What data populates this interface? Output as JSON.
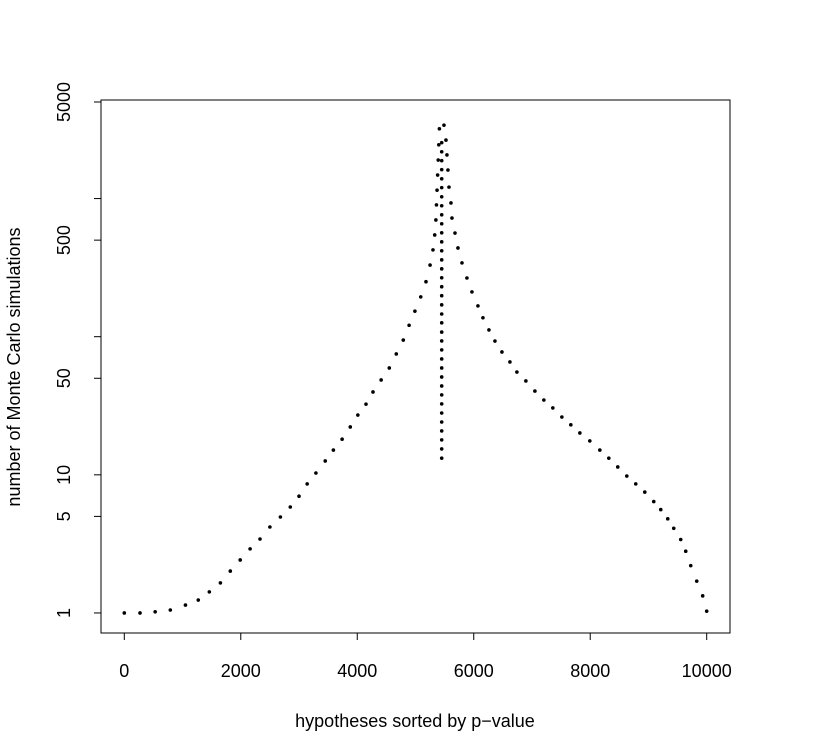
{
  "chart_data": {
    "type": "scatter",
    "xlabel": "hypotheses sorted by p−value",
    "ylabel": "number of Monte Carlo simulations",
    "ylog": true,
    "color": "#000000",
    "xlim": [
      -400,
      10400
    ],
    "ylim": [
      0.716,
      5170
    ],
    "xticks": [
      0,
      2000,
      4000,
      6000,
      8000,
      10000
    ],
    "yticks": [
      1,
      5,
      10,
      50,
      500,
      5000
    ],
    "yticks_minor": [
      100,
      1000
    ],
    "x": [
      0,
      270,
      530,
      790,
      1050,
      1270,
      1460,
      1650,
      1820,
      1990,
      2160,
      2330,
      2500,
      2680,
      2850,
      3000,
      3140,
      3290,
      3450,
      3590,
      3740,
      3880,
      4010,
      4150,
      4270,
      4410,
      4550,
      4670,
      4790,
      4890,
      4990,
      5090,
      5180,
      5250,
      5300,
      5330,
      5350,
      5360,
      5370,
      5380,
      5390,
      5400,
      5410,
      5450,
      5450,
      5450,
      5450,
      5450,
      5450,
      5450,
      5450,
      5450,
      5450,
      5450,
      5450,
      5450,
      5450,
      5450,
      5450,
      5450,
      5450,
      5450,
      5450,
      5450,
      5450,
      5450,
      5450,
      5450,
      5450,
      5450,
      5450,
      5450,
      5450,
      5450,
      5450,
      5450,
      5450,
      5450,
      5450,
      5489,
      5523,
      5540,
      5557,
      5575,
      5609,
      5626,
      5678,
      5729,
      5798,
      5883,
      5969,
      6072,
      6158,
      6261,
      6364,
      6484,
      6621,
      6741,
      6895,
      7050,
      7204,
      7358,
      7513,
      7667,
      7822,
      7993,
      8165,
      8319,
      8473,
      8628,
      8782,
      8937,
      9091,
      9211,
      9331,
      9434,
      9554,
      9640,
      9726,
      9829,
      9931,
      10000
    ],
    "values": [
      1,
      1,
      1.02,
      1.05,
      1.14,
      1.24,
      1.42,
      1.65,
      2.01,
      2.42,
      2.91,
      3.43,
      4.19,
      4.95,
      5.85,
      7.0,
      8.6,
      10.3,
      12.6,
      15.1,
      18.1,
      22.2,
      27.1,
      32.5,
      39.8,
      48.6,
      59.4,
      75,
      94.5,
      121,
      153,
      194,
      250,
      330,
      425,
      545,
      700,
      900,
      1150,
      1480,
      1900,
      2450,
      3200,
      13.2,
      15.4,
      17.9,
      20.8,
      24.1,
      28.0,
      32.6,
      37.9,
      44.0,
      51.1,
      59.4,
      69.0,
      80.2,
      93.2,
      108,
      126,
      146,
      170,
      198,
      230,
      267,
      310,
      360,
      419,
      486,
      565,
      657,
      763,
      887,
      1030,
      1200,
      1390,
      1620,
      1880,
      2180,
      2540,
      3400,
      2650,
      2070,
      1610,
      1210,
      929,
      723,
      563,
      439,
      342,
      266,
      211,
      167,
      137,
      112,
      93,
      77.5,
      65.6,
      55.5,
      47.8,
      40.4,
      34.8,
      30.5,
      26.2,
      23.0,
      20.1,
      17.6,
      15.1,
      13.2,
      11.4,
      9.8,
      8.6,
      7.5,
      6.4,
      5.6,
      4.8,
      4.1,
      3.4,
      2.8,
      2.2,
      1.7,
      1.33,
      1.03
    ]
  }
}
